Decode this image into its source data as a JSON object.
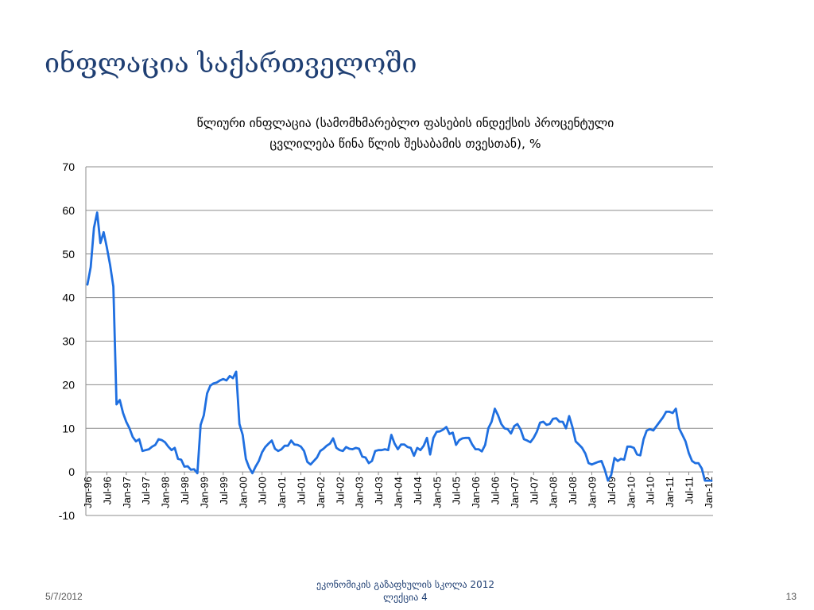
{
  "slide": {
    "title": "ინფლაცია საქართველოში",
    "footer_date": "5/7/2012",
    "footer_center_line1": "ეკონომიკის გაზაფხულის სკოლა 2012",
    "footer_center_line2": "ლექცია 4",
    "page_number": "13"
  },
  "chart_data": {
    "type": "line",
    "title_line1": "წლიური ინფლაცია (სამომხმარებლო ფასების ინდექსის პროცენტული",
    "title_line2": "ცვლილება წინა წლის შესაბამის თვესთან), %",
    "xlabel": "",
    "ylabel": "",
    "ylim": [
      -10,
      70
    ],
    "yticks": [
      -10,
      0,
      10,
      20,
      30,
      40,
      50,
      60,
      70
    ],
    "grid": true,
    "legend": "none",
    "series_color": "#1f6fe0",
    "x_tick_labels": [
      "Jan-96",
      "Jul-96",
      "Jan-97",
      "Jul-97",
      "Jan-98",
      "Jul-98",
      "Jan-99",
      "Jul-99",
      "Jan-00",
      "Jul-00",
      "Jan-01",
      "Jul-01",
      "Jan-02",
      "Jul-02",
      "Jan-03",
      "Jul-03",
      "Jan-04",
      "Jul-04",
      "Jan-05",
      "Jul-05",
      "Jan-06",
      "Jul-06",
      "Jan-07",
      "Jul-07",
      "Jan-08",
      "Jul-08",
      "Jan-09",
      "Jul-09",
      "Jan-10",
      "Jul-10",
      "Jan-11",
      "Jul-11",
      "Jan-12"
    ],
    "series": [
      {
        "start": "Jan-96",
        "frequency": "monthly",
        "values": [
          43,
          47,
          56,
          59.5,
          52.5,
          55,
          51.5,
          47.5,
          42.5,
          15.5,
          16.5,
          13.5,
          11.5,
          10,
          8,
          7,
          7.5,
          4.8,
          5,
          5.2,
          5.8,
          6.2,
          7.5,
          7.3,
          6.8,
          5.8,
          5,
          5.5,
          3,
          2.8,
          1.2,
          1.3,
          0.5,
          0.6,
          -0.3,
          10.8,
          13,
          18,
          19.8,
          20.3,
          20.5,
          21,
          21.3,
          21,
          22,
          21.5,
          23,
          11,
          8.5,
          3,
          1,
          -0.3,
          1.2,
          2.5,
          4.5,
          5.7,
          6.5,
          7.2,
          5.3,
          4.8,
          5.2,
          6,
          6,
          7.2,
          6.3,
          6.2,
          5.8,
          4.8,
          2.3,
          1.7,
          2.5,
          3.3,
          4.8,
          5.3,
          6,
          6.5,
          7.7,
          5.5,
          5,
          4.8,
          5.7,
          5.3,
          5.2,
          5.5,
          5.3,
          3.5,
          3.3,
          2,
          2.5,
          4.8,
          5,
          5,
          5.2,
          5,
          8.5,
          6.5,
          5.2,
          6.3,
          6.3,
          5.7,
          5.5,
          3.7,
          5.5,
          5,
          6,
          7.8,
          4,
          7.8,
          9.2,
          9.3,
          9.7,
          10.3,
          8.7,
          9,
          6.2,
          7.3,
          7.7,
          7.8,
          7.8,
          6.3,
          5.2,
          5.2,
          4.7,
          6.2,
          10,
          11.5,
          14.5,
          13,
          11,
          10,
          9.8,
          8.8,
          10.5,
          11,
          9.7,
          7.5,
          7.2,
          6.8,
          7.8,
          9.2,
          11.3,
          11.5,
          10.8,
          11,
          12.2,
          12.3,
          11.5,
          11.5,
          10,
          12.8,
          10.3,
          7,
          6.3,
          5.5,
          4.2,
          2,
          1.7,
          2,
          2.3,
          2.5,
          0.5,
          -2,
          -0.7,
          3.2,
          2.5,
          3,
          2.8,
          5.8,
          5.8,
          5.5,
          4,
          3.8,
          7.5,
          9.5,
          9.8,
          9.5,
          10.5,
          11.5,
          12.5,
          13.8,
          13.8,
          13.5,
          14.5,
          10,
          8.5,
          7,
          4.3,
          2.5,
          2,
          2,
          0.8,
          -2,
          -2,
          -2
        ]
      }
    ]
  }
}
